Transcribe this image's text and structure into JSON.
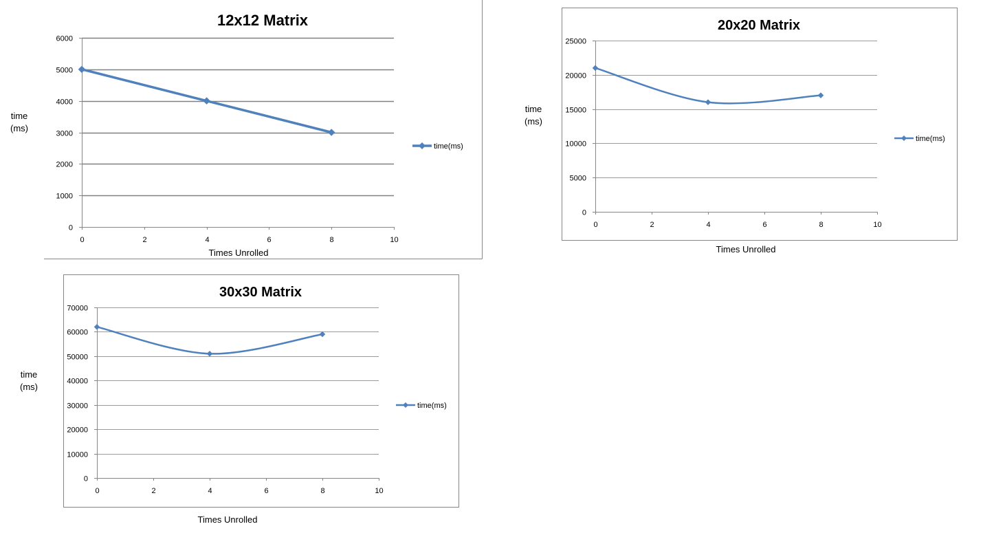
{
  "chart_data": [
    {
      "type": "line",
      "title": "12x12 Matrix",
      "xlabel": "Times Unrolled",
      "ylabel": [
        "time",
        "(ms)"
      ],
      "xlim": [
        0,
        10
      ],
      "ylim": [
        0,
        6000
      ],
      "xticks": [
        "0",
        "2",
        "4",
        "6",
        "8",
        "10"
      ],
      "yticks": [
        "0",
        "1000",
        "2000",
        "3000",
        "4000",
        "5000",
        "6000"
      ],
      "grid": true,
      "smooth": false,
      "legend_position": "right",
      "series": [
        {
          "name": "time(ms)",
          "color": "#4f81bd",
          "x": [
            0,
            4,
            8
          ],
          "values": [
            5000,
            4000,
            3000
          ]
        }
      ]
    },
    {
      "type": "line",
      "title": "20x20 Matrix",
      "xlabel": "Times Unrolled",
      "ylabel": [
        "time",
        "(ms)"
      ],
      "xlim": [
        0,
        10
      ],
      "ylim": [
        0,
        25000
      ],
      "xticks": [
        "0",
        "2",
        "4",
        "6",
        "8",
        "10"
      ],
      "yticks": [
        "0",
        "5000",
        "10000",
        "15000",
        "20000",
        "25000"
      ],
      "grid": true,
      "smooth": true,
      "legend_position": "right",
      "series": [
        {
          "name": "time(ms)",
          "color": "#4f81bd",
          "x": [
            0,
            4,
            8
          ],
          "values": [
            21000,
            16000,
            17000
          ]
        }
      ]
    },
    {
      "type": "line",
      "title": "30x30 Matrix",
      "xlabel": "Times Unrolled",
      "ylabel": [
        "time",
        "(ms)"
      ],
      "xlim": [
        0,
        10
      ],
      "ylim": [
        0,
        70000
      ],
      "xticks": [
        "0",
        "2",
        "4",
        "6",
        "8",
        "10"
      ],
      "yticks": [
        "0",
        "10000",
        "20000",
        "30000",
        "40000",
        "50000",
        "60000",
        "70000"
      ],
      "grid": true,
      "smooth": true,
      "legend_position": "right",
      "series": [
        {
          "name": "time(ms)",
          "color": "#4f81bd",
          "x": [
            0,
            4,
            8
          ],
          "values": [
            62000,
            51000,
            59000
          ]
        }
      ]
    }
  ]
}
